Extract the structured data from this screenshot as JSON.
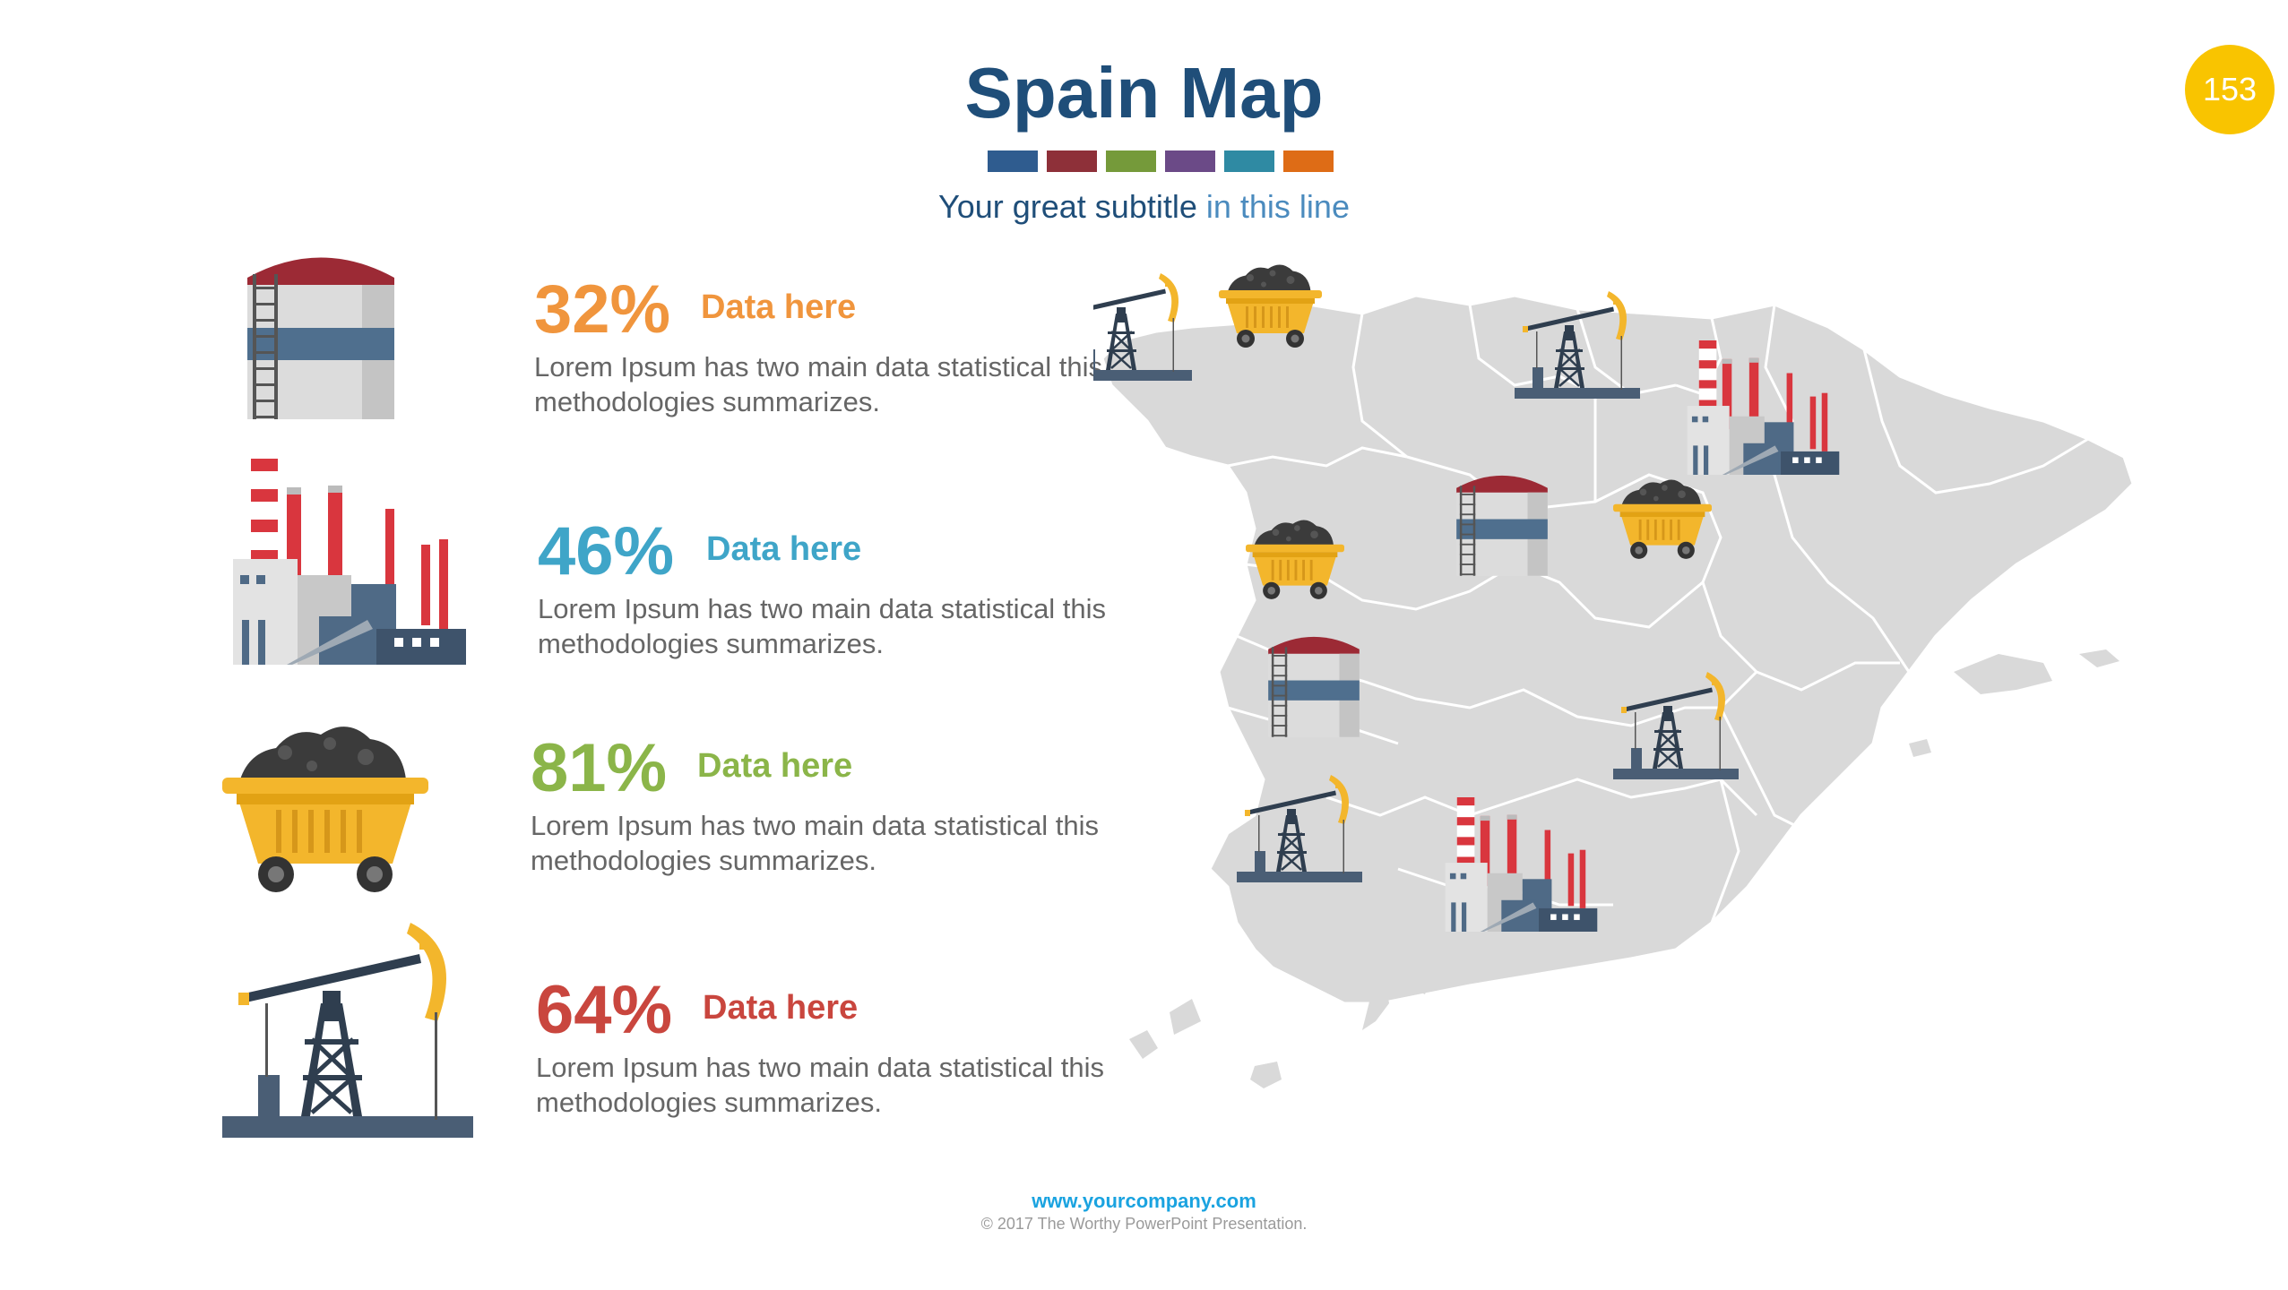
{
  "header": {
    "title": "Spain Map",
    "subtitle_part1": "Your great subtitle",
    "subtitle_part2": "in this line",
    "page_number": "153",
    "strip_colors": [
      "#2f5c8f",
      "#8e3039",
      "#759a3a",
      "#6b4a87",
      "#2f8aa3",
      "#de6c16"
    ]
  },
  "items": [
    {
      "icon": "oil-tank-icon",
      "percent": "32%",
      "label": "Data here",
      "color": "#f0953d",
      "description": "Lorem Ipsum has two main data statistical this methodologies summarizes."
    },
    {
      "icon": "factory-icon",
      "percent": "46%",
      "label": "Data here",
      "color": "#3fa5c8",
      "description": "Lorem Ipsum has two main data statistical this methodologies summarizes."
    },
    {
      "icon": "coal-cart-icon",
      "percent": "81%",
      "label": "Data here",
      "color": "#8bb549",
      "description": "Lorem Ipsum has two main data statistical this methodologies summarizes."
    },
    {
      "icon": "oil-pump-icon",
      "percent": "64%",
      "label": "Data here",
      "color": "#c9463e",
      "description": "Lorem Ipsum has two main data statistical this methodologies summarizes."
    }
  ],
  "map": {
    "region": "spain-map",
    "fill": "#d9d9d9",
    "border": "#ffffff",
    "markers": [
      "oil-pump-icon",
      "coal-cart-icon",
      "oil-pump-icon",
      "factory-icon",
      "oil-tank-icon",
      "coal-cart-icon",
      "coal-cart-icon",
      "oil-tank-icon",
      "oil-pump-icon",
      "oil-pump-icon",
      "factory-icon"
    ]
  },
  "footer": {
    "url": "www.yourcompany.com",
    "copyright": "© 2017 The Worthy PowerPoint Presentation."
  }
}
